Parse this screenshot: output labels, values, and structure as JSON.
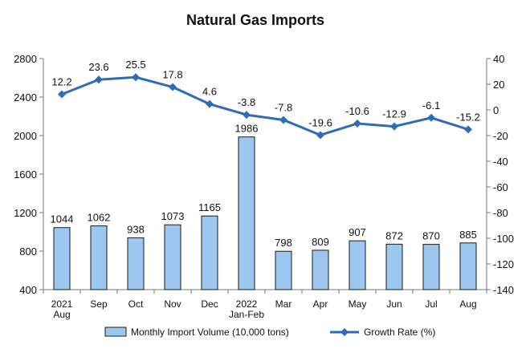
{
  "chart_data": {
    "type": "bar+line",
    "title": "Natural Gas Imports",
    "categories": [
      [
        "2021",
        "Aug"
      ],
      [
        "Sep"
      ],
      [
        "Oct"
      ],
      [
        "Nov"
      ],
      [
        "Dec"
      ],
      [
        "2022",
        "Jan-Feb"
      ],
      [
        "Mar"
      ],
      [
        "Apr"
      ],
      [
        "May"
      ],
      [
        "Jun"
      ],
      [
        "Jul"
      ],
      [
        "Aug"
      ]
    ],
    "series": [
      {
        "name": "Monthly Import Volume (10,000 tons)",
        "type": "bar",
        "axis": "left",
        "values": [
          1044,
          1062,
          938,
          1073,
          1165,
          1986,
          798,
          809,
          907,
          872,
          870,
          885
        ],
        "color": "#9cc8f0",
        "edge_color": "#1a1a1a"
      },
      {
        "name": "Growth Rate (%)",
        "type": "line",
        "axis": "right",
        "values": [
          12.2,
          23.6,
          25.5,
          17.8,
          4.6,
          -3.8,
          -7.8,
          -19.6,
          -10.6,
          -12.9,
          -6.1,
          -15.2
        ],
        "color": "#2e6db4"
      }
    ],
    "y_left": {
      "min": 400,
      "max": 2800,
      "ticks": [
        400,
        800,
        1200,
        1600,
        2000,
        2400,
        2800
      ]
    },
    "y_right": {
      "min": -140,
      "max": 40,
      "ticks": [
        -140,
        -120,
        -100,
        -80,
        -60,
        -40,
        -20,
        0,
        20,
        40
      ]
    },
    "legend_position": "bottom",
    "grid": false
  }
}
